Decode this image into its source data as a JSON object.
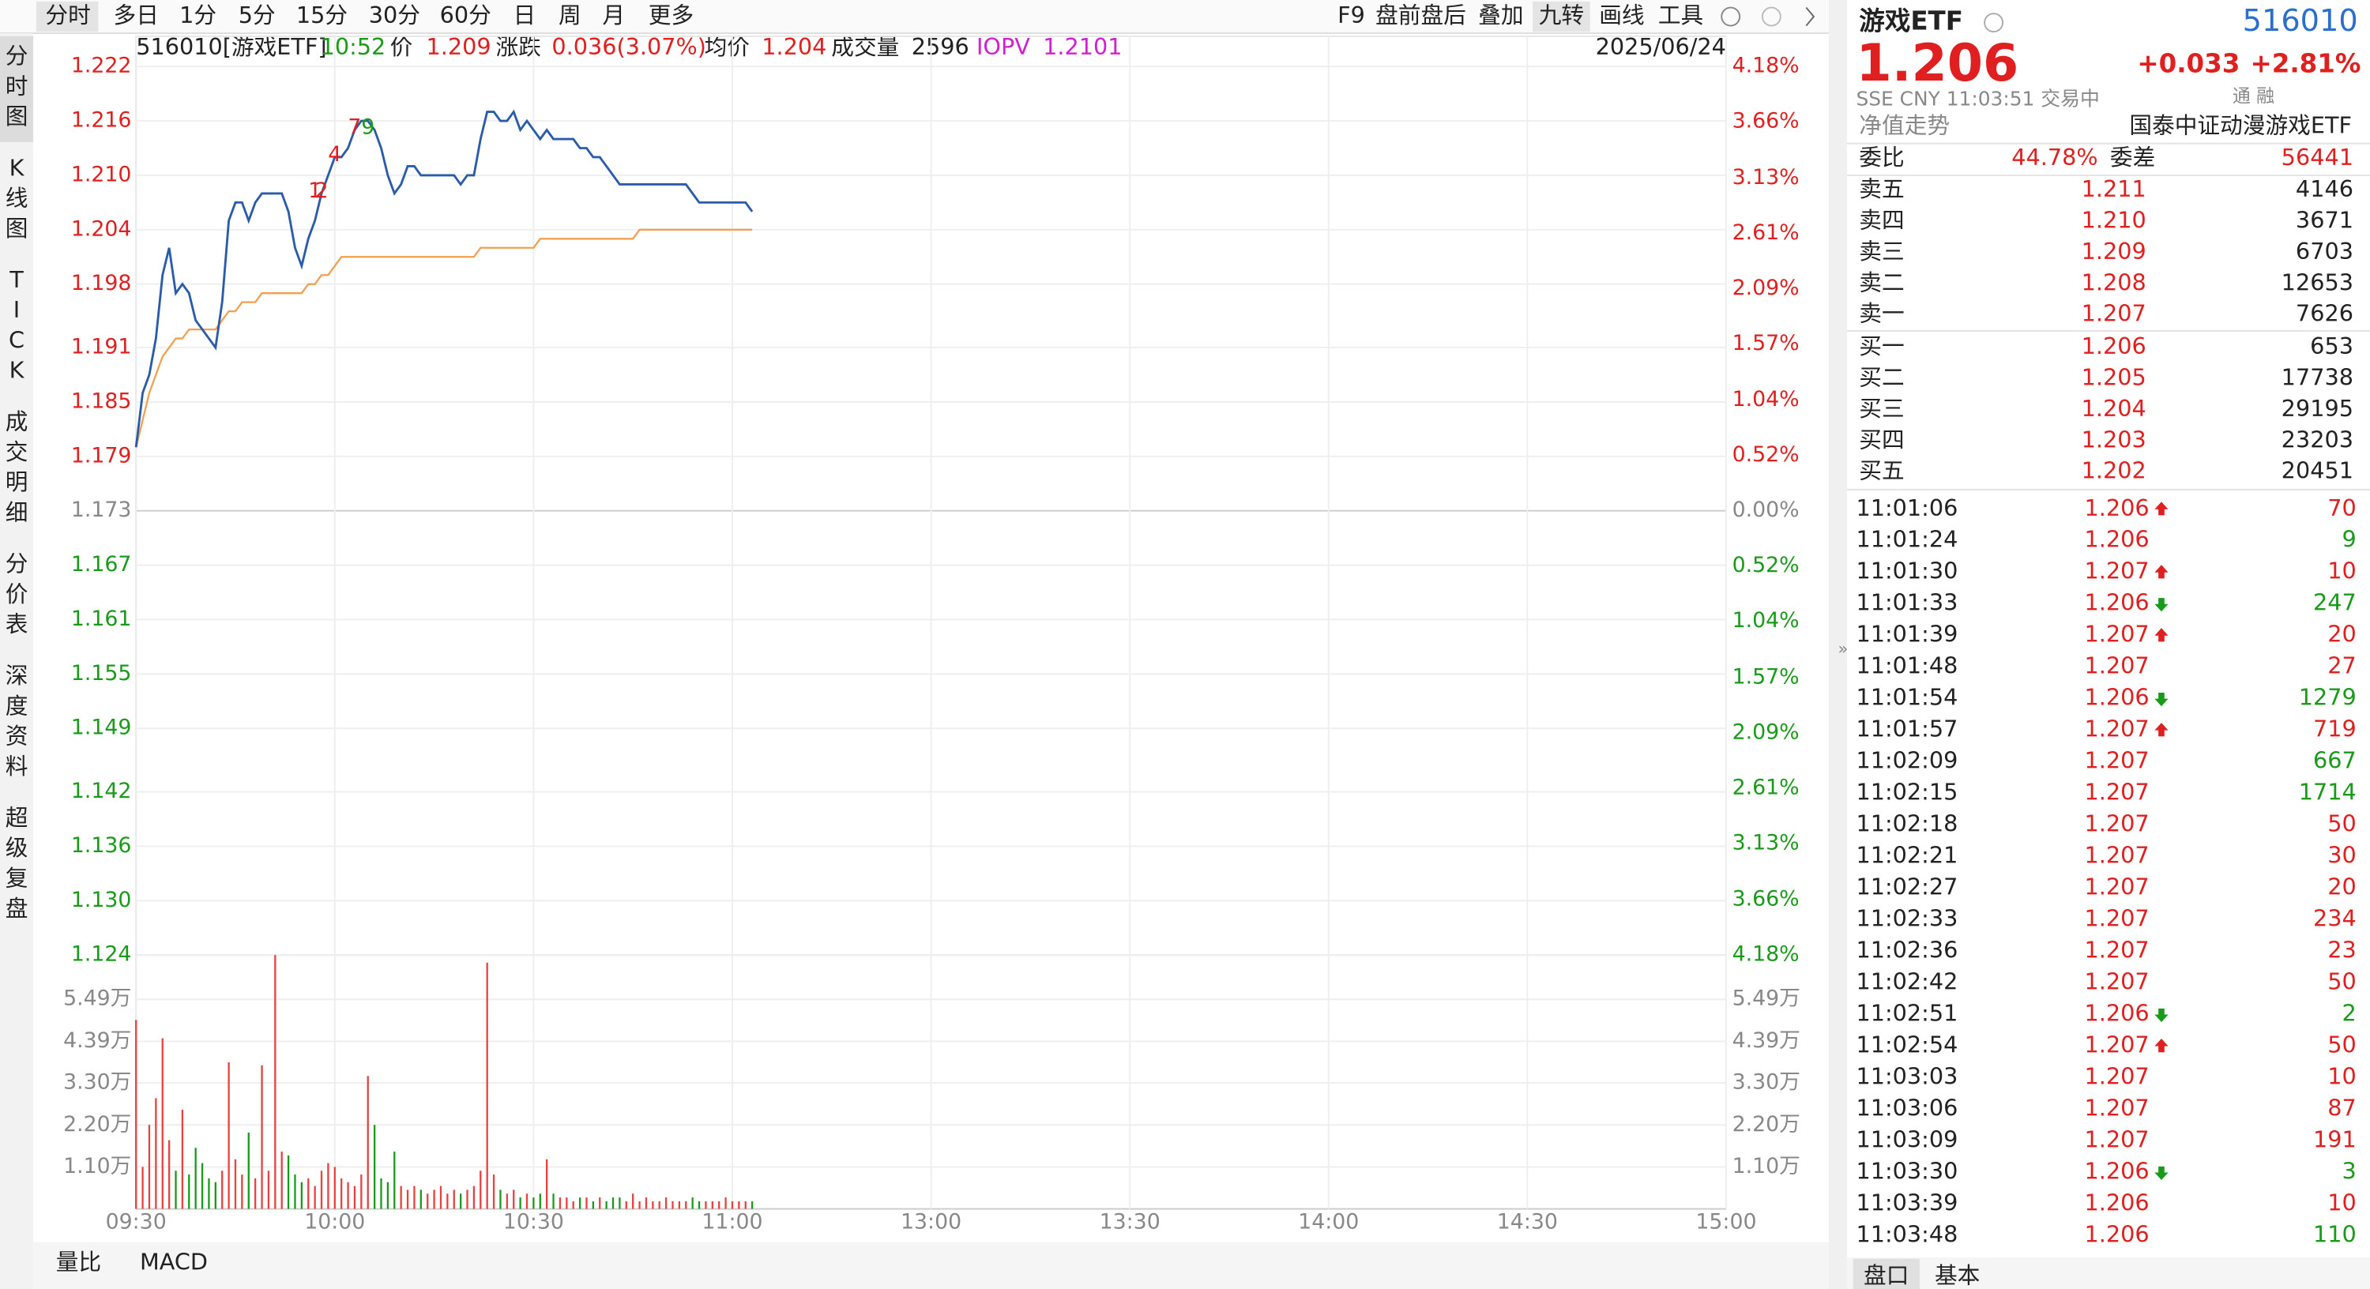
{
  "toolbar": {
    "tabs": [
      "分时",
      "多日",
      "1分",
      "5分",
      "15分",
      "30分",
      "60分",
      "日",
      "周",
      "月",
      "更多"
    ],
    "tools": [
      "F9",
      "盘前盘后",
      "叠加",
      "九转",
      "画线",
      "工具"
    ]
  },
  "sidebar": [
    "分时图",
    "K线图",
    "TICK",
    "成交明细",
    "分价表",
    "深度资料",
    "超级复盘"
  ],
  "info_bar": {
    "code": "516010[游戏ETF]",
    "time": "10:52",
    "price_label": "价",
    "price": "1.209",
    "change_label": "涨跌",
    "change": "0.036(3.07%)",
    "avg_label": "均价",
    "avg": "1.204",
    "volume_label": "成交量",
    "volume": "2596",
    "iopv_label": "IOPV",
    "iopv": "1.2101",
    "date": "2025/06/24"
  },
  "chart_data": [
    {
      "type": "line",
      "x": [
        0,
        1,
        2,
        3,
        4,
        5,
        6,
        7,
        8,
        9,
        10,
        11,
        12,
        13,
        14,
        15,
        16,
        17,
        18,
        19,
        20,
        21,
        22,
        23,
        24,
        25,
        26,
        27,
        28,
        29,
        30,
        31,
        32,
        33,
        34,
        35,
        36,
        37,
        38,
        39,
        40,
        41,
        42,
        43,
        44,
        45,
        46,
        47,
        48,
        49,
        50,
        51,
        52,
        53,
        54,
        55,
        56,
        57,
        58,
        59,
        60,
        61,
        62,
        63,
        64,
        65,
        66,
        67,
        68,
        69,
        70,
        71,
        72,
        73,
        74,
        75,
        76,
        77,
        78,
        79,
        80,
        81,
        82,
        83,
        84,
        85,
        86,
        87,
        88,
        89,
        90,
        91,
        92,
        93
      ],
      "xlim": [
        0,
        240
      ],
      "series": [
        {
          "name": "价",
          "color": "#2a5caa",
          "values": [
            1.18,
            1.186,
            1.188,
            1.192,
            1.199,
            1.202,
            1.197,
            1.198,
            1.197,
            1.194,
            1.193,
            1.192,
            1.191,
            1.196,
            1.205,
            1.207,
            1.207,
            1.205,
            1.207,
            1.208,
            1.208,
            1.208,
            1.208,
            1.206,
            1.202,
            1.2,
            1.203,
            1.205,
            1.208,
            1.21,
            1.212,
            1.212,
            1.213,
            1.215,
            1.216,
            1.216,
            1.215,
            1.213,
            1.21,
            1.208,
            1.209,
            1.211,
            1.211,
            1.21,
            1.21,
            1.21,
            1.21,
            1.21,
            1.21,
            1.209,
            1.21,
            1.21,
            1.214,
            1.217,
            1.217,
            1.216,
            1.216,
            1.217,
            1.215,
            1.216,
            1.215,
            1.214,
            1.215,
            1.214,
            1.214,
            1.214,
            1.214,
            1.213,
            1.213,
            1.212,
            1.212,
            1.211,
            1.21,
            1.209,
            1.209,
            1.209,
            1.209,
            1.209,
            1.209,
            1.209,
            1.209,
            1.209,
            1.209,
            1.209,
            1.208,
            1.207,
            1.207,
            1.207,
            1.207,
            1.207,
            1.207,
            1.207,
            1.207,
            1.206
          ]
        },
        {
          "name": "均价",
          "color": "#f0a050",
          "values": [
            1.18,
            1.183,
            1.186,
            1.188,
            1.19,
            1.191,
            1.192,
            1.192,
            1.193,
            1.193,
            1.193,
            1.193,
            1.193,
            1.194,
            1.195,
            1.195,
            1.196,
            1.196,
            1.196,
            1.197,
            1.197,
            1.197,
            1.197,
            1.197,
            1.197,
            1.197,
            1.198,
            1.198,
            1.199,
            1.199,
            1.2,
            1.201,
            1.201,
            1.201,
            1.201,
            1.201,
            1.201,
            1.201,
            1.201,
            1.201,
            1.201,
            1.201,
            1.201,
            1.201,
            1.201,
            1.201,
            1.201,
            1.201,
            1.201,
            1.201,
            1.201,
            1.201,
            1.202,
            1.202,
            1.202,
            1.202,
            1.202,
            1.202,
            1.202,
            1.202,
            1.202,
            1.203,
            1.203,
            1.203,
            1.203,
            1.203,
            1.203,
            1.203,
            1.203,
            1.203,
            1.203,
            1.203,
            1.203,
            1.203,
            1.203,
            1.203,
            1.204,
            1.204,
            1.204,
            1.204,
            1.204,
            1.204,
            1.204,
            1.204,
            1.204,
            1.204,
            1.204,
            1.204,
            1.204,
            1.204,
            1.204,
            1.204,
            1.204,
            1.204
          ]
        }
      ],
      "ylim": [
        1.124,
        1.222
      ],
      "yticks": [
        1.222,
        1.216,
        {
          "value": 1.21,
          "label": "1.210"
        },
        1.204,
        1.198,
        1.191,
        1.185,
        1.179,
        1.173,
        1.167,
        1.161,
        1.155,
        1.149,
        1.142,
        1.136,
        {
          "value": 1.13,
          "label": "1.130"
        },
        1.124
      ],
      "y2lim": [
        -4.18,
        4.18
      ],
      "y2ticks": [
        {
          "value": 4.18,
          "label": "4.18%"
        },
        {
          "value": 3.66,
          "label": "3.66%"
        },
        {
          "value": 3.13,
          "label": "3.13%"
        },
        {
          "value": 2.61,
          "label": "2.61%"
        },
        {
          "value": 2.09,
          "label": "2.09%"
        },
        {
          "value": 1.57,
          "label": "1.57%"
        },
        {
          "value": 1.04,
          "label": "1.04%"
        },
        {
          "value": 0.52,
          "label": "0.52%"
        },
        {
          "value": 0,
          "label": "0.00%"
        },
        {
          "value": -0.52,
          "label": "0.52%"
        },
        {
          "value": -1.04,
          "label": "1.04%"
        },
        {
          "value": -1.57,
          "label": "1.57%"
        },
        {
          "value": -2.09,
          "label": "2.09%"
        },
        {
          "value": -2.61,
          "label": "2.61%"
        },
        {
          "value": -3.13,
          "label": "3.13%"
        },
        {
          "value": -3.66,
          "label": "3.66%"
        },
        {
          "value": -4.18,
          "label": "4.18%"
        }
      ],
      "grid": true,
      "annotations": [
        {
          "text": "1",
          "x": 27,
          "y": 1.2082,
          "color": "#e02020"
        },
        {
          "text": "2",
          "x": 28,
          "y": 1.2082,
          "color": "#e02020"
        },
        {
          "text": "4",
          "x": 30,
          "y": 1.2122,
          "color": "#e02020"
        },
        {
          "text": "7",
          "x": 33,
          "y": 1.2152,
          "color": "#e02020"
        },
        {
          "text": "9",
          "x": 35,
          "y": 1.2152,
          "color": "#1a9a1a"
        }
      ]
    },
    {
      "type": "bar",
      "x": [
        0,
        1,
        2,
        3,
        4,
        5,
        6,
        7,
        8,
        9,
        10,
        11,
        12,
        13,
        14,
        15,
        16,
        17,
        18,
        19,
        20,
        21,
        22,
        23,
        24,
        25,
        26,
        27,
        28,
        29,
        30,
        31,
        32,
        33,
        34,
        35,
        36,
        37,
        38,
        39,
        40,
        41,
        42,
        43,
        44,
        45,
        46,
        47,
        48,
        49,
        50,
        51,
        52,
        53,
        54,
        55,
        56,
        57,
        58,
        59,
        60,
        61,
        62,
        63,
        64,
        65,
        66,
        67,
        68,
        69,
        70,
        71,
        72,
        73,
        74,
        75,
        76,
        77,
        78,
        79,
        80,
        81,
        82,
        83,
        84,
        85,
        86,
        87,
        88,
        89,
        90,
        91,
        92,
        93
      ],
      "values": [
        4.95,
        1.1,
        2.2,
        2.9,
        4.47,
        1.8,
        1.0,
        2.6,
        0.9,
        1.6,
        1.2,
        0.8,
        0.7,
        1.0,
        3.84,
        1.3,
        0.9,
        2.0,
        0.8,
        3.76,
        1.0,
        6.65,
        1.5,
        1.4,
        0.9,
        0.7,
        0.8,
        0.6,
        1.0,
        1.2,
        1.1,
        0.8,
        0.7,
        0.6,
        0.9,
        3.48,
        2.2,
        0.8,
        0.7,
        1.5,
        0.6,
        0.5,
        0.6,
        0.5,
        0.4,
        0.5,
        0.6,
        0.4,
        0.5,
        0.4,
        0.5,
        0.6,
        1.0,
        6.45,
        0.9,
        0.5,
        0.4,
        0.5,
        0.3,
        0.4,
        0.3,
        0.4,
        1.3,
        0.4,
        0.3,
        0.3,
        0.2,
        0.3,
        0.3,
        0.2,
        0.3,
        0.2,
        0.3,
        0.3,
        0.2,
        0.4,
        0.2,
        0.3,
        0.2,
        0.2,
        0.3,
        0.2,
        0.2,
        0.2,
        0.3,
        0.2,
        0.2,
        0.2,
        0.2,
        0.3,
        0.2,
        0.2,
        0.2,
        0.2
      ],
      "colors": {
        "up": "#e8413e",
        "down": "#1a9a1a"
      },
      "xlim": [
        0,
        240
      ],
      "xticks": [
        {
          "value": 0,
          "label": "09:30"
        },
        {
          "value": 30,
          "label": "10:00"
        },
        {
          "value": 60,
          "label": "10:30"
        },
        {
          "value": 90,
          "label": "11:00"
        },
        {
          "value": 120,
          "label": "13:00"
        },
        {
          "value": 150,
          "label": "13:30"
        },
        {
          "value": 180,
          "label": "14:00"
        },
        {
          "value": 210,
          "label": "14:30"
        },
        {
          "value": 240,
          "label": "15:00"
        }
      ],
      "ylim": [
        0,
        6.65
      ],
      "yticks": [
        {
          "value": 5.49,
          "label": "5.49万"
        },
        {
          "value": 4.39,
          "label": "4.39万"
        },
        {
          "value": 3.3,
          "label": "3.30万"
        },
        {
          "value": 2.2,
          "label": "2.20万"
        },
        {
          "value": 1.1,
          "label": "1.10万"
        }
      ],
      "grid": true
    }
  ],
  "bottom_tabs": [
    "量比",
    "MACD"
  ],
  "quote": {
    "name": "游戏ETF",
    "code": "516010",
    "price": "1.206",
    "change": "+0.033",
    "change_pct": "+2.81%",
    "meta": "SSE  CNY  11:03:51  交易中",
    "badges": "通  融",
    "nav_label": "净值走势",
    "fund_name": "国泰中证动漫游戏ETF",
    "ratio_label": "委比",
    "ratio": "44.78%",
    "diff_label": "委差",
    "diff": "56441"
  },
  "asks": [
    [
      "卖五",
      "1.211",
      "4146"
    ],
    [
      "卖四",
      "1.210",
      "3671"
    ],
    [
      "卖三",
      "1.209",
      "6703"
    ],
    [
      "卖二",
      "1.208",
      "12653"
    ],
    [
      "卖一",
      "1.207",
      "7626"
    ]
  ],
  "bids": [
    [
      "买一",
      "1.206",
      "653"
    ],
    [
      "买二",
      "1.205",
      "17738"
    ],
    [
      "买三",
      "1.204",
      "29195"
    ],
    [
      "买四",
      "1.203",
      "23203"
    ],
    [
      "买五",
      "1.202",
      "20451"
    ]
  ],
  "trades": [
    {
      "time": "11:01:06",
      "price": "1.206",
      "volume": "70",
      "arrow": "up",
      "side": "buy"
    },
    {
      "time": "11:01:24",
      "price": "1.206",
      "volume": "9",
      "side": "sell"
    },
    {
      "time": "11:01:30",
      "price": "1.207",
      "volume": "10",
      "arrow": "up",
      "side": "buy"
    },
    {
      "time": "11:01:33",
      "price": "1.206",
      "volume": "247",
      "arrow": "down",
      "side": "sell"
    },
    {
      "time": "11:01:39",
      "price": "1.207",
      "volume": "20",
      "arrow": "up",
      "side": "buy"
    },
    {
      "time": "11:01:48",
      "price": "1.207",
      "volume": "27",
      "side": "buy"
    },
    {
      "time": "11:01:54",
      "price": "1.206",
      "volume": "1279",
      "arrow": "down",
      "side": "sell"
    },
    {
      "time": "11:01:57",
      "price": "1.207",
      "volume": "719",
      "arrow": "up",
      "side": "buy"
    },
    {
      "time": "11:02:09",
      "price": "1.207",
      "volume": "667",
      "side": "sell"
    },
    {
      "time": "11:02:15",
      "price": "1.207",
      "volume": "1714",
      "side": "sell"
    },
    {
      "time": "11:02:18",
      "price": "1.207",
      "volume": "50",
      "side": "buy"
    },
    {
      "time": "11:02:21",
      "price": "1.207",
      "volume": "30",
      "side": "buy"
    },
    {
      "time": "11:02:27",
      "price": "1.207",
      "volume": "20",
      "side": "buy"
    },
    {
      "time": "11:02:33",
      "price": "1.207",
      "volume": "234",
      "side": "buy"
    },
    {
      "time": "11:02:36",
      "price": "1.207",
      "volume": "23",
      "side": "buy"
    },
    {
      "time": "11:02:42",
      "price": "1.207",
      "volume": "50",
      "side": "buy"
    },
    {
      "time": "11:02:51",
      "price": "1.206",
      "volume": "2",
      "arrow": "down",
      "side": "sell"
    },
    {
      "time": "11:02:54",
      "price": "1.207",
      "volume": "50",
      "arrow": "up",
      "side": "buy"
    },
    {
      "time": "11:03:03",
      "price": "1.207",
      "volume": "10",
      "side": "buy"
    },
    {
      "time": "11:03:06",
      "price": "1.207",
      "volume": "87",
      "side": "buy"
    },
    {
      "time": "11:03:09",
      "price": "1.207",
      "volume": "191",
      "side": "buy"
    },
    {
      "time": "11:03:30",
      "price": "1.206",
      "volume": "3",
      "arrow": "down",
      "side": "sell"
    },
    {
      "time": "11:03:39",
      "price": "1.206",
      "volume": "10",
      "side": "buy"
    },
    {
      "time": "11:03:48",
      "price": "1.206",
      "volume": "110",
      "side": "sell"
    }
  ],
  "panel_tabs": [
    "盘口",
    "基本"
  ]
}
